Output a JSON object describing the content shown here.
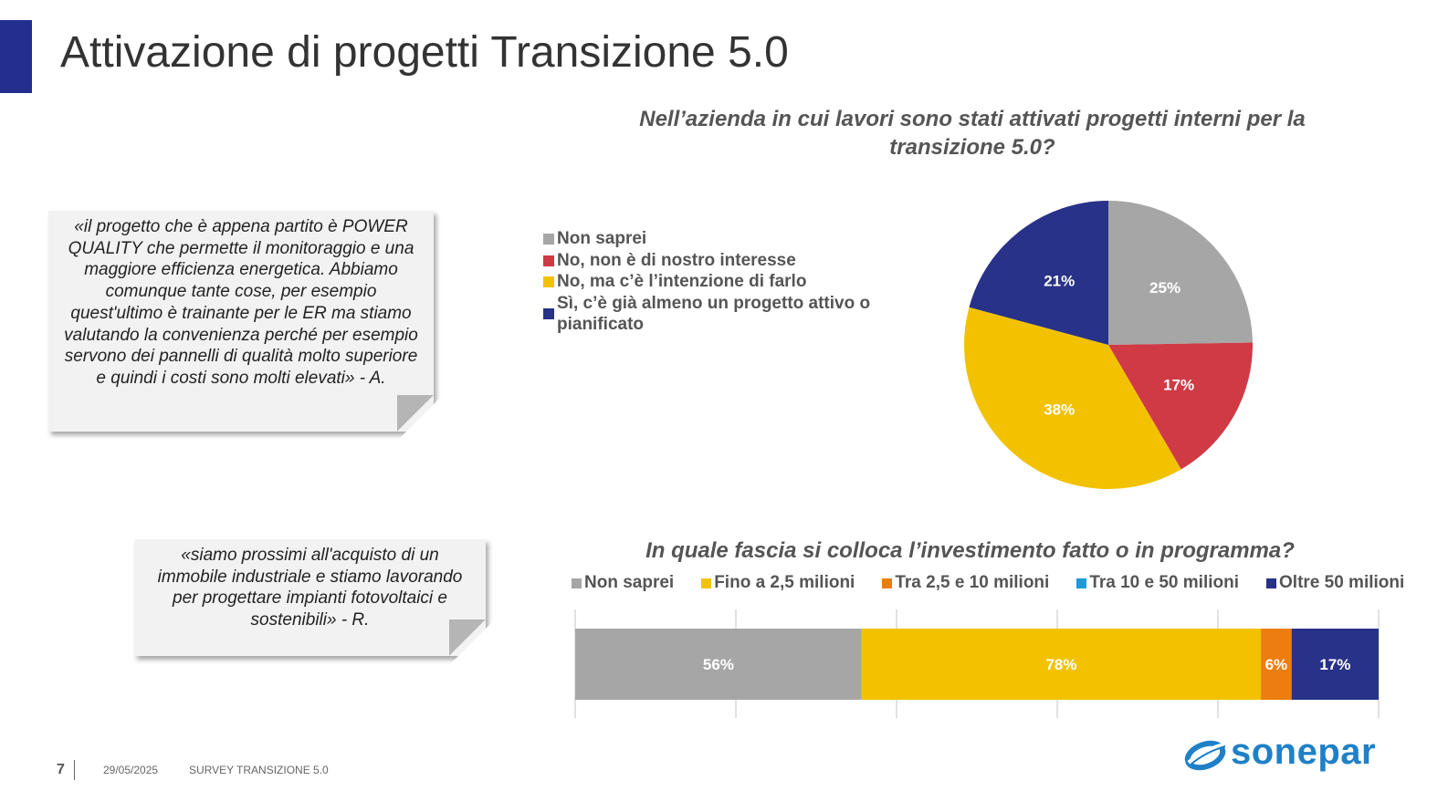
{
  "header": {
    "title": "Attivazione di progetti Transizione 5.0"
  },
  "pie_question": "Nell’azienda in cui lavori sono stati attivati progetti interni per la transizione 5.0?",
  "bar_question": "In quale fascia si colloca l’investimento fatto o in programma?",
  "notes": [
    "«il progetto che è appena partito è POWER QUALITY che permette il monitoraggio e una maggiore efficienza energetica. Abbiamo comunque tante cose, per esempio quest'ultimo è trainante per le ER ma stiamo valutando la convenienza perché per esempio servono dei pannelli di qualità molto superiore e quindi i costi sono molti elevati» - A.",
    "«siamo prossimi all'acquisto di un immobile industriale e stiamo lavorando per progettare impianti fotovoltaici e sostenibili» - R."
  ],
  "footer": {
    "page": "7",
    "date": "29/05/2025",
    "survey": "SURVEY TRANSIZIONE 5.0"
  },
  "logo": {
    "text": "sonepar",
    "color": "#1f80c8"
  },
  "chart_data": [
    {
      "type": "pie",
      "title": "Nell’azienda in cui lavori sono stati attivati progetti interni per la transizione 5.0?",
      "legend_position": "left",
      "slices": [
        {
          "label": "Non saprei",
          "value": 25,
          "display": "25%",
          "color": "#a6a6a6"
        },
        {
          "label": "No, non è di nostro interesse",
          "value": 17,
          "display": "17%",
          "color": "#d03a45"
        },
        {
          "label": "No, ma c’è l’intenzione di farlo",
          "value": 38,
          "display": "38%",
          "color": "#f2c200"
        },
        {
          "label": "Sì, c’è già almeno un progetto attivo o pianificato",
          "value": 21,
          "display": "21%",
          "color": "#283288"
        }
      ]
    },
    {
      "type": "bar",
      "orientation": "horizontal",
      "stacked": true,
      "title": "In quale fascia si colloca l’investimento fatto o in programma?",
      "legend_position": "top",
      "grid": true,
      "series": [
        {
          "name": "Non saprei",
          "value": 56,
          "display": "56%",
          "color": "#a6a6a6"
        },
        {
          "name": "Fino a 2,5 milioni",
          "value": 78,
          "display": "78%",
          "color": "#f2c200"
        },
        {
          "name": "Tra 2,5 e 10 milioni",
          "value": 6,
          "display": "6%",
          "color": "#ed7d0e"
        },
        {
          "name": "Tra 10 e 50 milioni",
          "value": 0,
          "display": "",
          "color": "#1e9ad6"
        },
        {
          "name": "Oltre 50 milioni",
          "value": 17,
          "display": "17%",
          "color": "#283288"
        }
      ]
    }
  ]
}
